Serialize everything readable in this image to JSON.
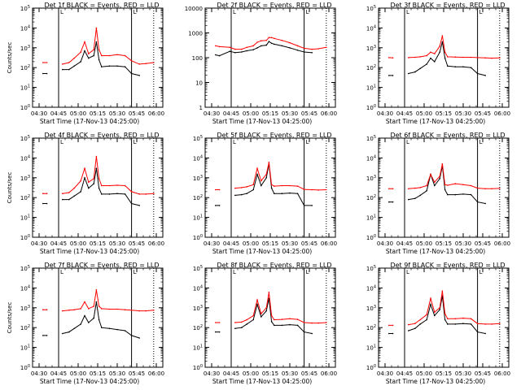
{
  "figure": {
    "start_time_label": "Start Time (17-Nov-13 04:25:00)",
    "ylabel": "Counts/sec",
    "x_tick_labels": [
      "04:30",
      "04:45",
      "05:00",
      "05:15",
      "05:30",
      "05:45",
      "06:00"
    ],
    "series_colors": {
      "events": "#000000",
      "lld": "#ff0000"
    },
    "vertical_markers": {
      "solid": [
        "04:45",
        "05:41"
      ],
      "dotted": [
        "05:58"
      ],
      "flag": "L"
    }
  },
  "chart_data": [
    {
      "type": "line",
      "title": "Det 1f BLACK = Events, RED = LLD",
      "xlabel": "Start Time (17-Nov-13 04:25:00)",
      "ylabel": "Counts/sec",
      "xlim": [
        "04:25",
        "06:05"
      ],
      "ylim": [
        1,
        100000
      ],
      "yscale": "log",
      "yticks": [
        "10^0",
        "10^1",
        "10^2",
        "10^3",
        "10^4",
        "10^5"
      ],
      "x": [
        "04:33",
        "04:36",
        "04:44",
        "04:48",
        "04:53",
        "04:57",
        "05:02",
        "05:05",
        "05:08",
        "05:12",
        "05:14",
        "05:16",
        "05:18",
        "05:24",
        "05:30",
        "05:36",
        "05:41",
        "05:47",
        "05:52",
        "05:58"
      ],
      "series": [
        {
          "name": "Events",
          "values": [
            50,
            50,
            null,
            80,
            80,
            120,
            200,
            700,
            300,
            400,
            2000,
            250,
            110,
            120,
            120,
            110,
            50,
            40,
            null,
            null
          ]
        },
        {
          "name": "LLD",
          "values": [
            180,
            180,
            null,
            150,
            180,
            300,
            600,
            2000,
            500,
            800,
            10000,
            800,
            400,
            400,
            450,
            400,
            220,
            150,
            160,
            180
          ]
        }
      ]
    },
    {
      "type": "line",
      "title": "Det 2f BLACK = Events, RED = LLD",
      "xlabel": "Start Time (17-Nov-13 04:25:00)",
      "ylabel": "",
      "xlim": [
        "04:25",
        "06:05"
      ],
      "ylim": [
        1,
        10000
      ],
      "yscale": "log",
      "yticks": [
        "1",
        "10",
        "100",
        "1000",
        "10000"
      ],
      "x": [
        "04:33",
        "04:36",
        "04:44",
        "04:48",
        "04:53",
        "04:57",
        "05:02",
        "05:05",
        "05:08",
        "05:12",
        "05:14",
        "05:16",
        "05:18",
        "05:24",
        "05:30",
        "05:36",
        "05:41",
        "05:47",
        "05:52",
        "05:58"
      ],
      "series": [
        {
          "name": "Events",
          "values": [
            130,
            120,
            180,
            160,
            170,
            190,
            210,
            250,
            300,
            320,
            450,
            380,
            350,
            300,
            250,
            200,
            170,
            160,
            null,
            null
          ]
        },
        {
          "name": "LLD",
          "values": [
            300,
            280,
            260,
            220,
            220,
            260,
            300,
            420,
            480,
            500,
            650,
            650,
            600,
            500,
            400,
            300,
            240,
            220,
            230,
            260
          ]
        }
      ]
    },
    {
      "type": "line",
      "title": "Det 3f BLACK = Events, RED = LLD",
      "xlabel": "Start Time (17-Nov-13 04:25:00)",
      "ylabel": "",
      "xlim": [
        "04:25",
        "06:05"
      ],
      "ylim": [
        1,
        100000
      ],
      "yscale": "log",
      "yticks": [
        "10^0",
        "10^1",
        "10^2",
        "10^3",
        "10^4",
        "10^5"
      ],
      "x": [
        "04:33",
        "04:36",
        "04:44",
        "04:48",
        "04:53",
        "04:57",
        "05:02",
        "05:05",
        "05:08",
        "05:12",
        "05:14",
        "05:16",
        "05:18",
        "05:24",
        "05:30",
        "05:36",
        "05:41",
        "05:47",
        "05:52",
        "05:58"
      ],
      "series": [
        {
          "name": "Events",
          "values": [
            40,
            40,
            null,
            50,
            60,
            90,
            150,
            300,
            200,
            600,
            2000,
            300,
            120,
            110,
            110,
            100,
            50,
            40,
            null,
            null
          ]
        },
        {
          "name": "LLD",
          "values": [
            320,
            310,
            null,
            320,
            330,
            350,
            400,
            600,
            500,
            1200,
            4000,
            600,
            350,
            340,
            330,
            330,
            320,
            310,
            300,
            310
          ]
        }
      ]
    },
    {
      "type": "line",
      "title": "Det 4f BLACK = Events, RED = LLD",
      "xlabel": "Start Time (17-Nov-13 04:25:00)",
      "ylabel": "Counts/sec",
      "xlim": [
        "04:25",
        "06:05"
      ],
      "ylim": [
        1,
        100000
      ],
      "yscale": "log",
      "yticks": [
        "10^0",
        "10^1",
        "10^2",
        "10^3",
        "10^4",
        "10^5"
      ],
      "x": [
        "04:33",
        "04:36",
        "04:44",
        "04:48",
        "04:53",
        "04:57",
        "05:02",
        "05:05",
        "05:08",
        "05:12",
        "05:14",
        "05:16",
        "05:18",
        "05:24",
        "05:30",
        "05:36",
        "05:41",
        "05:47",
        "05:52",
        "05:58"
      ],
      "series": [
        {
          "name": "Events",
          "values": [
            50,
            50,
            null,
            80,
            80,
            120,
            200,
            1000,
            300,
            500,
            3000,
            300,
            150,
            150,
            160,
            150,
            50,
            40,
            null,
            null
          ]
        },
        {
          "name": "LLD",
          "values": [
            160,
            160,
            null,
            160,
            180,
            300,
            700,
            3000,
            600,
            900,
            12000,
            900,
            400,
            400,
            420,
            400,
            200,
            150,
            150,
            160
          ]
        }
      ]
    },
    {
      "type": "line",
      "title": "Det 5f BLACK = Events, RED = LLD",
      "xlabel": "Start Time (17-Nov-13 04:25:00)",
      "ylabel": "",
      "xlim": [
        "04:25",
        "06:05"
      ],
      "ylim": [
        1,
        100000
      ],
      "yscale": "log",
      "yticks": [
        "10^0",
        "10^1",
        "10^2",
        "10^3",
        "10^4",
        "10^5"
      ],
      "x": [
        "04:33",
        "04:36",
        "04:44",
        "04:48",
        "04:53",
        "04:57",
        "05:02",
        "05:05",
        "05:08",
        "05:12",
        "05:14",
        "05:16",
        "05:18",
        "05:24",
        "05:30",
        "05:36",
        "05:41",
        "05:47",
        "05:52",
        "05:58"
      ],
      "series": [
        {
          "name": "Events",
          "values": [
            40,
            40,
            null,
            130,
            140,
            160,
            250,
            1500,
            400,
            1000,
            5000,
            300,
            160,
            160,
            170,
            160,
            40,
            40,
            null,
            null
          ]
        },
        {
          "name": "LLD",
          "values": [
            250,
            250,
            null,
            300,
            320,
            350,
            450,
            3000,
            700,
            1500,
            6000,
            450,
            380,
            400,
            400,
            380,
            260,
            250,
            240,
            250
          ]
        }
      ]
    },
    {
      "type": "line",
      "title": "Det 6f BLACK = Events, RED = LLD",
      "xlabel": "Start Time (17-Nov-13 04:25:00)",
      "ylabel": "",
      "xlim": [
        "04:25",
        "06:05"
      ],
      "ylim": [
        1,
        100000
      ],
      "yscale": "log",
      "yticks": [
        "10^0",
        "10^1",
        "10^2",
        "10^3",
        "10^4",
        "10^5"
      ],
      "x": [
        "04:33",
        "04:36",
        "04:44",
        "04:48",
        "04:53",
        "04:57",
        "05:02",
        "05:05",
        "05:08",
        "05:12",
        "05:14",
        "05:16",
        "05:18",
        "05:24",
        "05:30",
        "05:36",
        "05:41",
        "05:47",
        "05:52",
        "05:58"
      ],
      "series": [
        {
          "name": "Events",
          "values": [
            60,
            60,
            null,
            80,
            90,
            130,
            220,
            1500,
            400,
            900,
            4000,
            250,
            140,
            140,
            150,
            140,
            60,
            50,
            null,
            null
          ]
        },
        {
          "name": "LLD",
          "values": [
            280,
            280,
            null,
            280,
            300,
            320,
            400,
            1500,
            600,
            1200,
            5000,
            450,
            420,
            500,
            450,
            400,
            300,
            280,
            280,
            290
          ]
        }
      ]
    },
    {
      "type": "line",
      "title": "Det 7f BLACK = Events, RED = LLD",
      "xlabel": "Start Time (17-Nov-13 04:25:00)",
      "ylabel": "Counts/sec",
      "xlim": [
        "04:25",
        "06:05"
      ],
      "ylim": [
        1,
        100000
      ],
      "yscale": "log",
      "yticks": [
        "10^0",
        "10^1",
        "10^2",
        "10^3",
        "10^4",
        "10^5"
      ],
      "x": [
        "04:33",
        "04:36",
        "04:44",
        "04:48",
        "04:53",
        "04:57",
        "05:02",
        "05:05",
        "05:08",
        "05:12",
        "05:14",
        "05:16",
        "05:18",
        "05:24",
        "05:30",
        "05:36",
        "05:41",
        "05:47",
        "05:52",
        "05:58"
      ],
      "series": [
        {
          "name": "Events",
          "values": [
            40,
            40,
            null,
            50,
            60,
            90,
            150,
            400,
            180,
            300,
            2000,
            250,
            100,
            90,
            80,
            70,
            40,
            30,
            null,
            null
          ]
        },
        {
          "name": "LLD",
          "values": [
            800,
            800,
            null,
            700,
            750,
            800,
            900,
            2000,
            900,
            1200,
            8000,
            1200,
            900,
            850,
            850,
            800,
            750,
            700,
            700,
            750
          ]
        }
      ]
    },
    {
      "type": "line",
      "title": "Det 8f BLACK = Events, RED = LLD",
      "xlabel": "Start Time (17-Nov-13 04:25:00)",
      "ylabel": "",
      "xlim": [
        "04:25",
        "06:05"
      ],
      "ylim": [
        1,
        100000
      ],
      "yscale": "log",
      "yticks": [
        "10^0",
        "10^1",
        "10^2",
        "10^3",
        "10^4",
        "10^5"
      ],
      "x": [
        "04:33",
        "04:36",
        "04:44",
        "04:48",
        "04:53",
        "04:57",
        "05:02",
        "05:05",
        "05:08",
        "05:12",
        "05:14",
        "05:16",
        "05:18",
        "05:24",
        "05:30",
        "05:36",
        "05:41",
        "05:47",
        "05:52",
        "05:58"
      ],
      "series": [
        {
          "name": "Events",
          "values": [
            60,
            60,
            null,
            90,
            100,
            150,
            250,
            1500,
            350,
            700,
            3000,
            200,
            130,
            130,
            140,
            130,
            60,
            50,
            null,
            null
          ]
        },
        {
          "name": "LLD",
          "values": [
            180,
            180,
            null,
            180,
            190,
            250,
            400,
            2500,
            500,
            1000,
            6000,
            400,
            250,
            260,
            280,
            260,
            180,
            170,
            170,
            180
          ]
        }
      ]
    },
    {
      "type": "line",
      "title": "Det 9f BLACK = Events, RED = LLD",
      "xlabel": "Start Time (17-Nov-13 04:25:00)",
      "ylabel": "",
      "xlim": [
        "04:25",
        "06:05"
      ],
      "ylim": [
        1,
        100000
      ],
      "yscale": "log",
      "yticks": [
        "10^0",
        "10^1",
        "10^2",
        "10^3",
        "10^4",
        "10^5"
      ],
      "x": [
        "04:33",
        "04:36",
        "04:44",
        "04:48",
        "04:53",
        "04:57",
        "05:02",
        "05:05",
        "05:08",
        "05:12",
        "05:14",
        "05:16",
        "05:18",
        "05:24",
        "05:30",
        "05:36",
        "05:41",
        "05:47",
        "05:52",
        "05:58"
      ],
      "series": [
        {
          "name": "Events",
          "values": [
            50,
            50,
            null,
            70,
            90,
            150,
            250,
            1500,
            400,
            800,
            4000,
            250,
            150,
            150,
            160,
            150,
            60,
            50,
            null,
            null
          ]
        },
        {
          "name": "LLD",
          "values": [
            130,
            130,
            null,
            140,
            160,
            250,
            450,
            3000,
            600,
            1000,
            7000,
            500,
            280,
            280,
            300,
            280,
            160,
            150,
            150,
            160
          ]
        }
      ]
    }
  ]
}
